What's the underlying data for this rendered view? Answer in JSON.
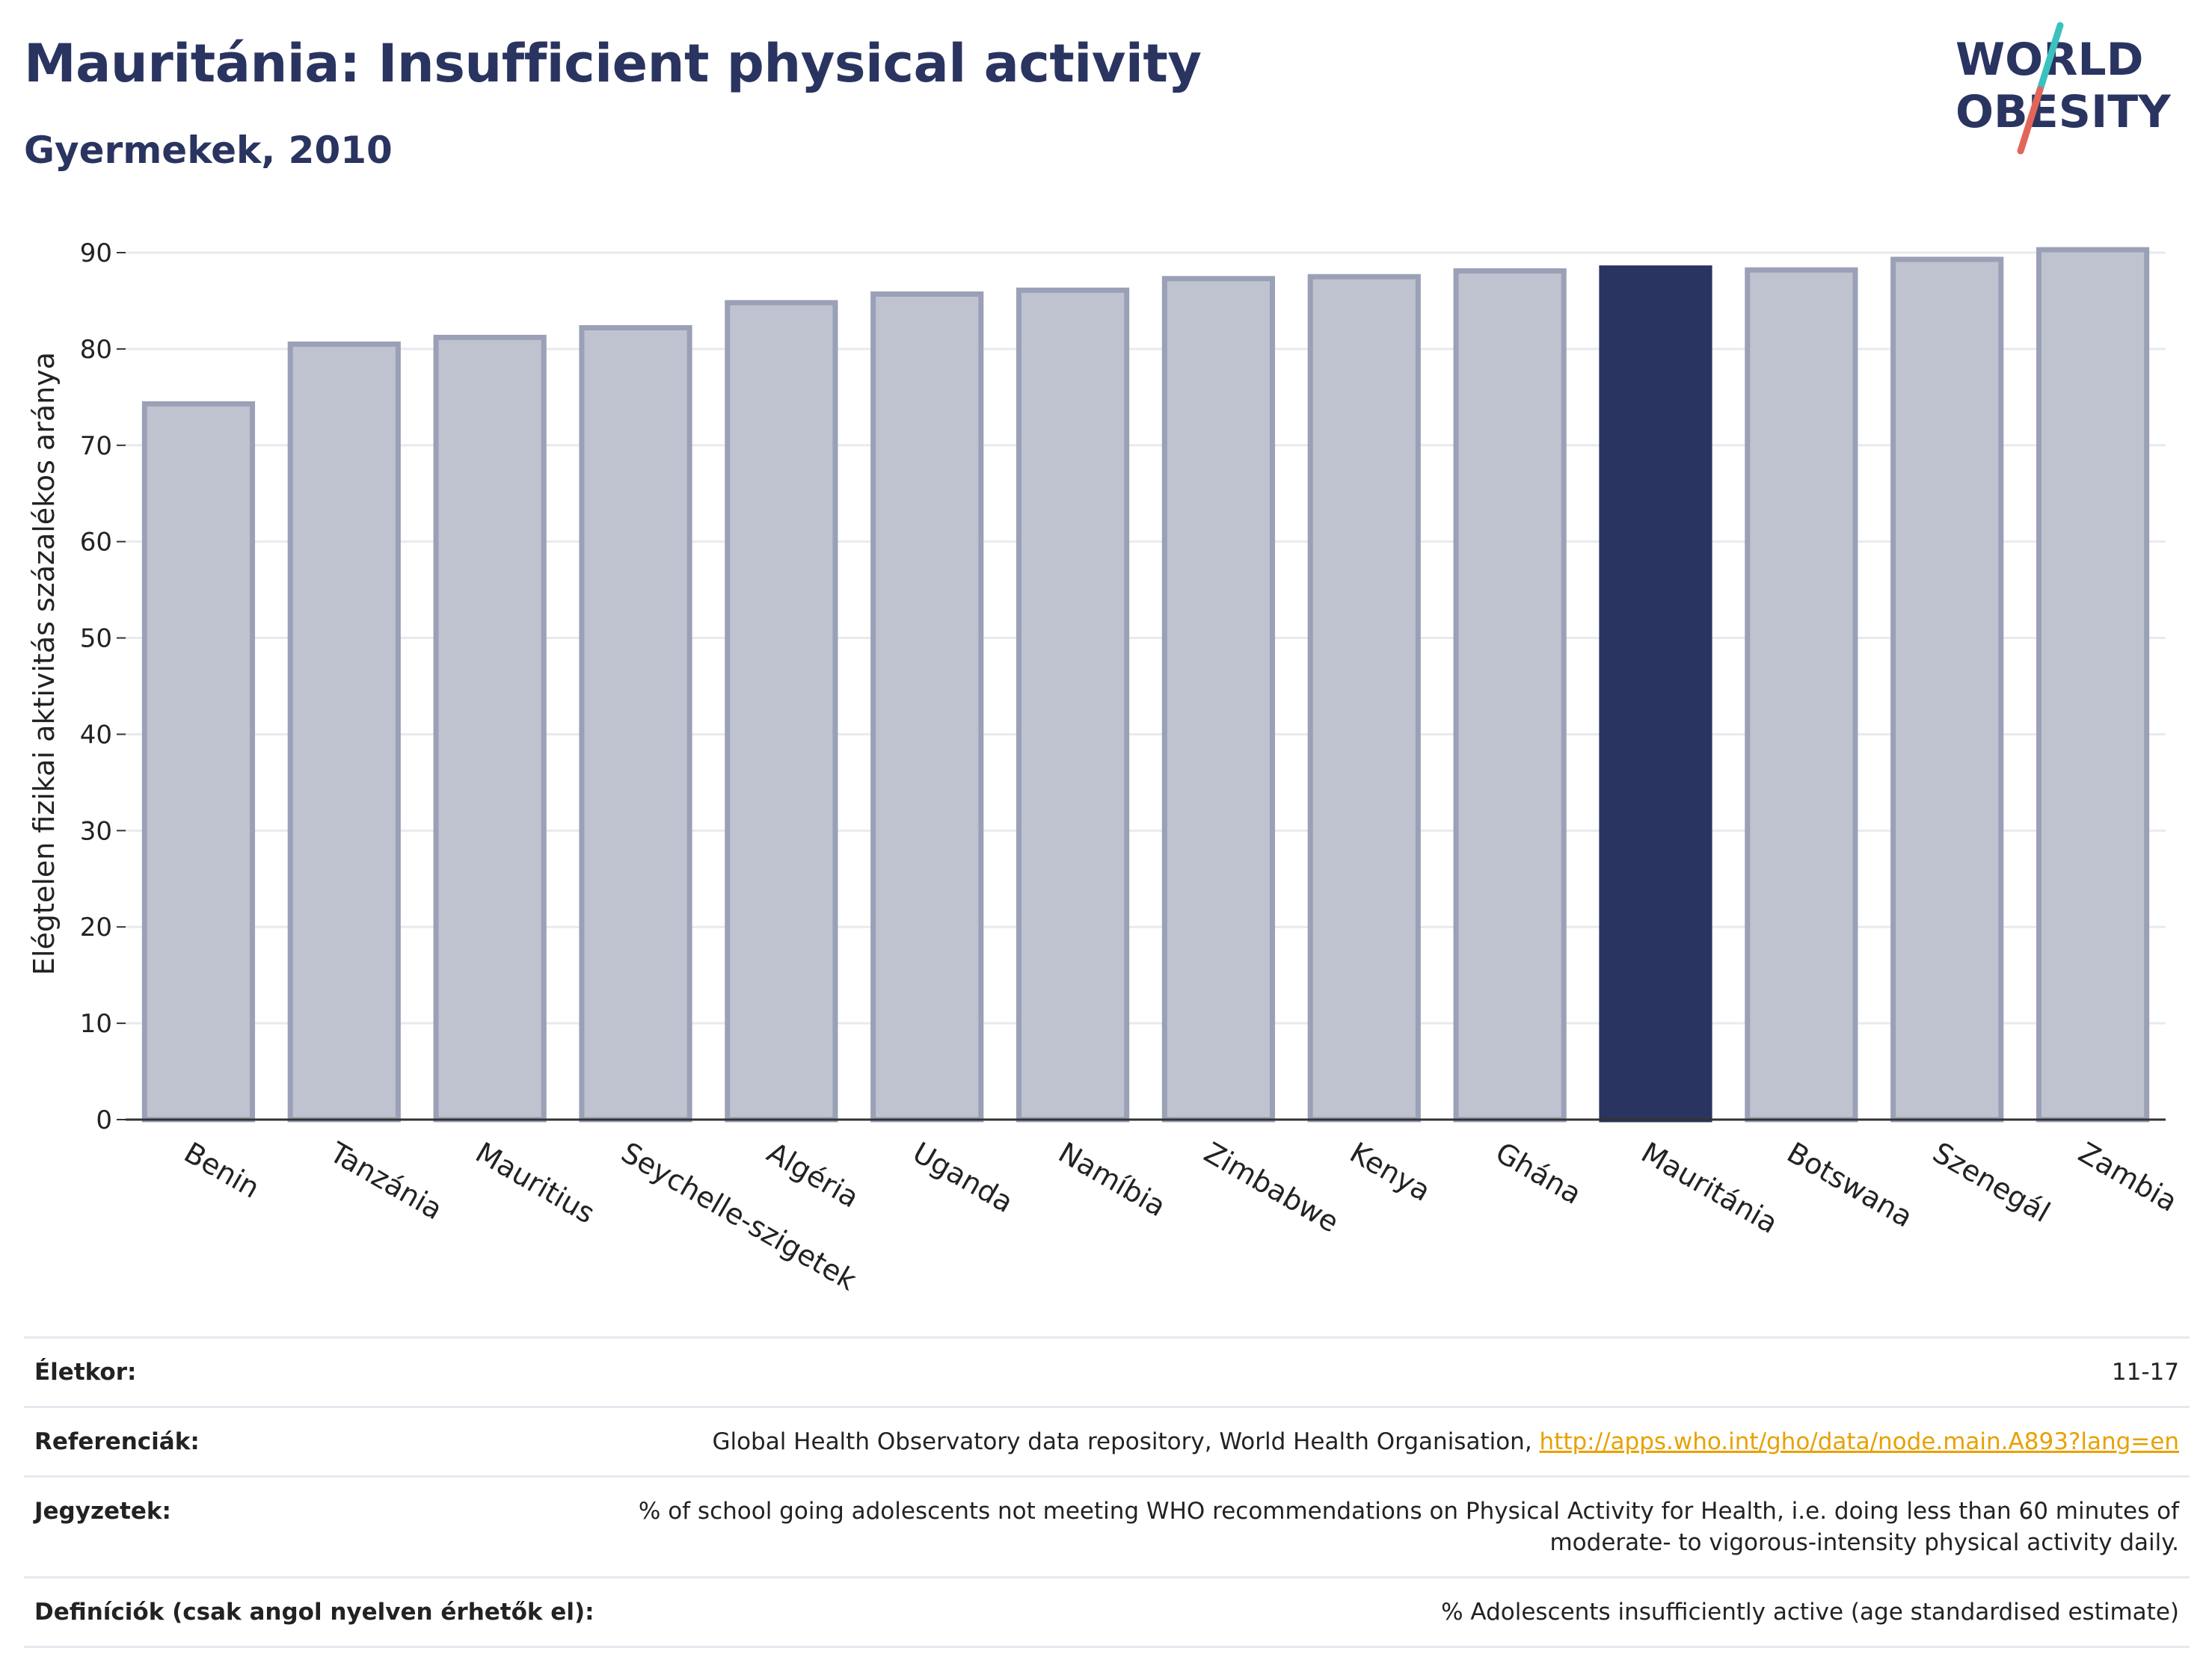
{
  "header": {
    "title": "Mauritánia: Insufficient physical activity",
    "subtitle": "Gyermekek, 2010"
  },
  "logo": {
    "line1": "WORLD",
    "line2": "OBESITY",
    "colors": {
      "text": "#2a3460",
      "accent_teal": "#3cc1bf",
      "accent_red": "#e2655a"
    }
  },
  "chart_data": {
    "type": "bar",
    "title": "",
    "xlabel": "",
    "ylabel": "Elégtelen fizikai aktivitás százalékos aránya",
    "ylim": [
      0,
      90
    ],
    "yticks": [
      0,
      10,
      20,
      30,
      40,
      50,
      60,
      70,
      80,
      90
    ],
    "grid": true,
    "categories": [
      "Benin",
      "Tanzánia",
      "Mauritius",
      "Seychelle-szigetek",
      "Algéria",
      "Uganda",
      "Namíbia",
      "Zimbabwe",
      "Kenya",
      "Ghána",
      "Mauritánia",
      "Botswana",
      "Szenegál",
      "Zambia"
    ],
    "values": [
      74.3,
      80.5,
      81.2,
      82.2,
      84.8,
      85.7,
      86.1,
      87.3,
      87.5,
      88.1,
      88.4,
      88.2,
      89.3,
      90.3
    ],
    "highlight": "Mauritánia",
    "colors": {
      "bar": "#bfc3d0",
      "bar_border": "#9aa0b6",
      "highlight": "#2a3460",
      "grid": "#e9eaef",
      "axis": "#333333"
    }
  },
  "info_table": [
    {
      "key": "Életkor:",
      "value": "11-17"
    },
    {
      "key": "Referenciák:",
      "value": "Global Health Observatory data repository, World Health Organisation, ",
      "link": "http://apps.who.int/gho/data/node.main.A893?lang=en"
    },
    {
      "key": "Jegyzetek:",
      "value": "% of school going adolescents not meeting WHO recommendations on Physical Activity for Health, i.e. doing less than 60 minutes of moderate- to vigorous-intensity physical activity daily."
    },
    {
      "key": "Definíciók (csak angol nyelven érhetők el):",
      "value": "% Adolescents insufficiently active (age standardised estimate)"
    }
  ]
}
